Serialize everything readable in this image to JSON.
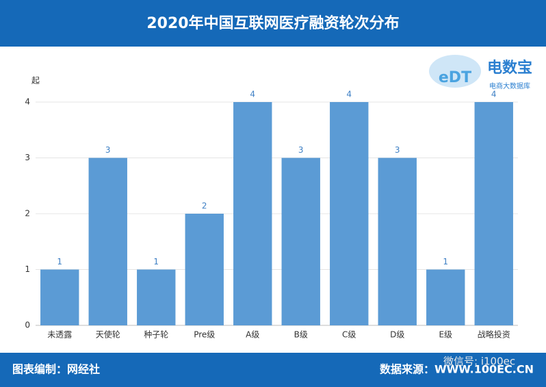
{
  "chart_data": {
    "type": "bar",
    "title": "2020年中国互联网医疗融资轮次分布",
    "y_label": "起",
    "categories": [
      "未透露",
      "天使轮",
      "种子轮",
      "Pre级",
      "A级",
      "B级",
      "C级",
      "D级",
      "E级",
      "战略投资"
    ],
    "values": [
      1,
      3,
      1,
      2,
      4,
      3,
      4,
      3,
      1,
      4
    ],
    "color": "#5b9bd5",
    "ylim": [
      0,
      4
    ],
    "yticks": [
      0,
      1,
      2,
      3,
      4
    ],
    "grid": true
  },
  "logo": {
    "mark": "eDT",
    "name": "电数宝",
    "tagline": "电商大数据库"
  },
  "footer": {
    "left": "图表编制：网经社",
    "right": "数据来源：WWW.100EC.CN",
    "watermark": "微信号: i100ec"
  }
}
